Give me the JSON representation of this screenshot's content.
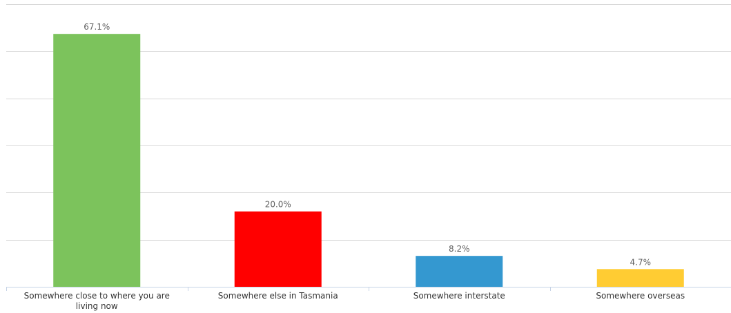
{
  "chart_data": {
    "type": "bar",
    "title": "",
    "xlabel": "",
    "ylabel": "",
    "categories": [
      "Somewhere close to where you are living now",
      "Somewhere else in Tasmania",
      "Somewhere interstate",
      "Somewhere overseas"
    ],
    "category_lines": [
      [
        "Somewhere close to where you are",
        "living now"
      ],
      [
        "Somewhere else in Tasmania"
      ],
      [
        "Somewhere interstate"
      ],
      [
        "Somewhere overseas"
      ]
    ],
    "values": [
      67.1,
      20.0,
      8.2,
      4.7
    ],
    "data_labels": [
      "67.1%",
      "20.0%",
      "8.2%",
      "4.7%"
    ],
    "colors": [
      "#7cc35c",
      "#ff0000",
      "#3498d0",
      "#ffcc33"
    ],
    "ylim": [
      0,
      75
    ],
    "y_gridlines": [
      0,
      12.5,
      25,
      37.5,
      50,
      62.5,
      75
    ],
    "grid": true,
    "legend": "none"
  }
}
